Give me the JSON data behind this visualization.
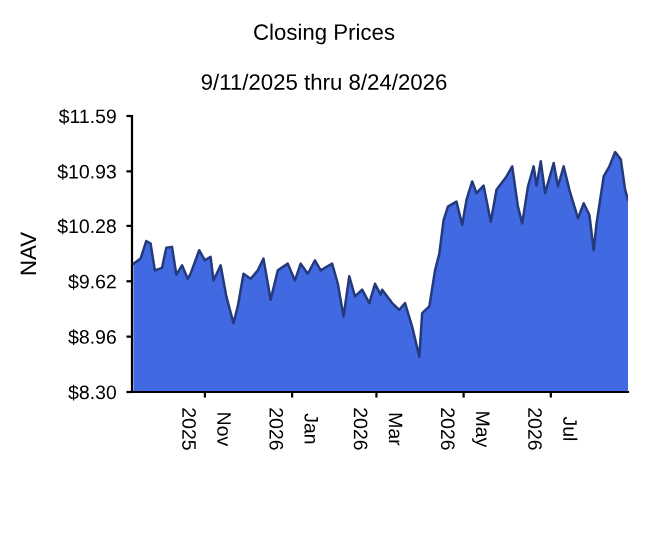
{
  "chart_data": {
    "type": "area",
    "title": "Closing Prices",
    "subtitle": "9/11/2025 thru 8/24/2026",
    "ylabel": "NAV",
    "x": [
      "2025-09-12",
      "2025-09-17",
      "2025-09-21",
      "2025-09-24",
      "2025-09-27",
      "2025-10-02",
      "2025-10-05",
      "2025-10-09",
      "2025-10-12",
      "2025-10-16",
      "2025-10-20",
      "2025-10-22",
      "2025-10-28",
      "2025-11-01",
      "2025-11-05",
      "2025-11-07",
      "2025-11-12",
      "2025-11-16",
      "2025-11-21",
      "2025-11-24",
      "2025-11-28",
      "2025-12-03",
      "2025-12-08",
      "2025-12-12",
      "2025-12-17",
      "2025-12-22",
      "2025-12-29",
      "2026-01-03",
      "2026-01-07",
      "2026-01-12",
      "2026-01-17",
      "2026-01-21",
      "2026-01-29",
      "2026-02-02",
      "2026-02-06",
      "2026-02-10",
      "2026-02-14",
      "2026-02-19",
      "2026-02-24",
      "2026-02-28",
      "2026-03-04",
      "2026-03-05",
      "2026-03-12",
      "2026-03-17",
      "2026-03-21",
      "2026-03-26",
      "2026-03-31",
      "2026-04-02",
      "2026-04-07",
      "2026-04-11",
      "2026-04-14",
      "2026-04-17",
      "2026-04-20",
      "2026-04-26",
      "2026-04-30",
      "2026-05-03",
      "2026-05-07",
      "2026-05-10",
      "2026-05-15",
      "2026-05-20",
      "2026-05-24",
      "2026-05-31",
      "2026-06-04",
      "2026-06-08",
      "2026-06-11",
      "2026-06-15",
      "2026-06-19",
      "2026-06-21",
      "2026-06-24",
      "2026-06-27",
      "2026-07-03",
      "2026-07-06",
      "2026-07-10",
      "2026-07-14",
      "2026-07-20",
      "2026-07-24",
      "2026-07-28",
      "2026-07-31",
      "2026-08-02",
      "2026-08-07",
      "2026-08-11",
      "2026-08-15",
      "2026-08-19",
      "2026-08-22",
      "2026-08-24"
    ],
    "series": [
      {
        "color": "#4169e1",
        "values": [
          9.83,
          9.89,
          10.1,
          10.07,
          9.75,
          9.78,
          10.02,
          10.03,
          9.7,
          9.81,
          9.65,
          9.71,
          9.99,
          9.87,
          9.91,
          9.63,
          9.81,
          9.44,
          9.12,
          9.32,
          9.71,
          9.65,
          9.75,
          9.89,
          9.4,
          9.75,
          9.83,
          9.63,
          9.83,
          9.71,
          9.87,
          9.75,
          9.83,
          9.59,
          9.2,
          9.68,
          9.44,
          9.52,
          9.36,
          9.59,
          9.46,
          9.52,
          9.36,
          9.28,
          9.36,
          9.08,
          8.72,
          9.24,
          9.32,
          9.75,
          9.95,
          10.35,
          10.51,
          10.57,
          10.29,
          10.59,
          10.81,
          10.67,
          10.76,
          10.33,
          10.71,
          10.87,
          10.99,
          10.51,
          10.31,
          10.75,
          10.99,
          10.76,
          11.05,
          10.67,
          11.03,
          10.75,
          10.99,
          10.71,
          10.37,
          10.55,
          10.41,
          9.99,
          10.31,
          10.87,
          10.99,
          11.16,
          11.07,
          10.71,
          10.59
        ]
      }
    ],
    "xlim": [
      "2025-09-11",
      "2026-08-24"
    ],
    "xticks": [
      {
        "value": "2025-11-01",
        "label": "Nov 2025"
      },
      {
        "value": "2026-01-01",
        "label": "Jan 2026"
      },
      {
        "value": "2026-03-01",
        "label": "Mar 2026"
      },
      {
        "value": "2026-05-01",
        "label": "May 2026"
      },
      {
        "value": "2026-07-01",
        "label": "Jul 2026"
      }
    ],
    "ylim": [
      8.3,
      11.59
    ],
    "yticks": [
      {
        "value": 8.3,
        "label": "$8.30"
      },
      {
        "value": 8.96,
        "label": "$8.96"
      },
      {
        "value": 9.62,
        "label": "$9.62"
      },
      {
        "value": 10.28,
        "label": "$10.28"
      },
      {
        "value": 10.93,
        "label": "$10.93"
      },
      {
        "value": 11.59,
        "label": "$11.59"
      }
    ],
    "grid": false,
    "legend": false
  }
}
